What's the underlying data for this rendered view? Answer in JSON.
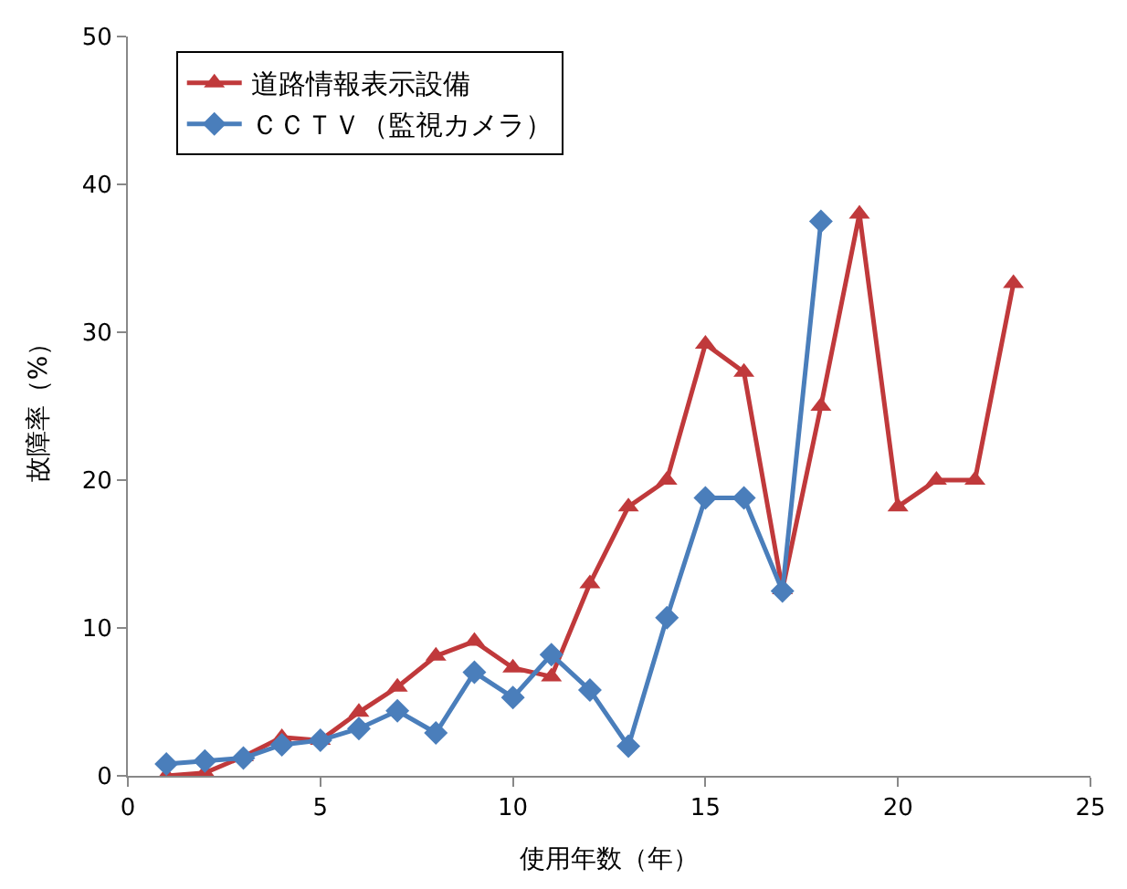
{
  "chart_data": {
    "type": "line",
    "xlabel": "使用年数（年）",
    "ylabel": "故障率（%）",
    "xlim": [
      0,
      25
    ],
    "xticks": [
      0,
      5,
      10,
      15,
      20,
      25
    ],
    "ylim": [
      0,
      50
    ],
    "yticks": [
      0,
      10,
      20,
      30,
      40,
      50
    ],
    "legend": "top left",
    "series": [
      {
        "name": "道路情報表示設備",
        "color": "#c0393b",
        "marker": "triangle",
        "x": [
          1,
          2,
          3,
          4,
          5,
          6,
          7,
          8,
          9,
          10,
          11,
          12,
          13,
          14,
          15,
          16,
          17,
          18,
          19,
          20,
          21,
          22,
          23
        ],
        "values": [
          0,
          0.2,
          1.3,
          2.6,
          2.4,
          4.3,
          6.0,
          8.1,
          9.1,
          7.3,
          6.7,
          13.0,
          18.2,
          20.0,
          29.2,
          27.3,
          12.6,
          25.0,
          38.0,
          18.2,
          20.0,
          20.0,
          33.3
        ]
      },
      {
        "name": "ＣＣＴＶ（監視カメラ）",
        "color": "#4a7ebb",
        "marker": "diamond",
        "x": [
          1,
          2,
          3,
          4,
          5,
          6,
          7,
          8,
          9,
          10,
          11,
          12,
          13,
          14,
          15,
          16,
          17,
          18
        ],
        "values": [
          0.8,
          1.0,
          1.2,
          2.1,
          2.4,
          3.2,
          4.4,
          2.9,
          7.0,
          5.3,
          8.2,
          5.8,
          2.0,
          10.7,
          18.8,
          18.8,
          12.5,
          37.5
        ]
      }
    ]
  }
}
